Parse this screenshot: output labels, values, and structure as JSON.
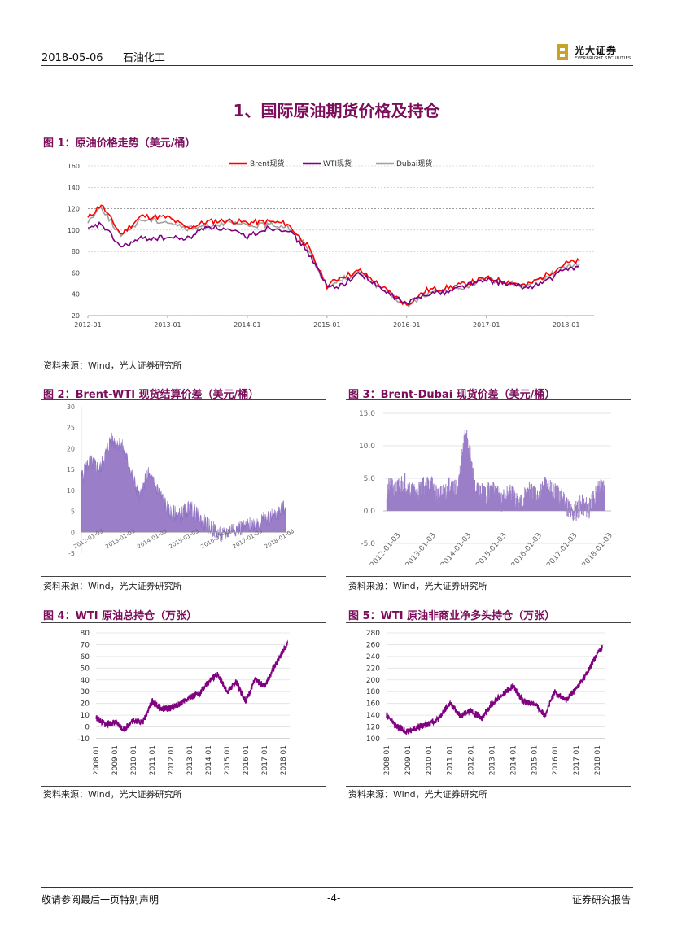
{
  "header": {
    "date": "2018-05-06",
    "sector": "石油化工",
    "logo_cn": "光大证券",
    "logo_en": "EVERBRIGHT SECURITIES"
  },
  "section_title": "1、国际原油期货价格及持仓",
  "source_text": "资料来源：Wind，光大证券研究所",
  "footer": {
    "left": "敬请参阅最后一页特别声明",
    "center": "-4-",
    "right": "证券研究报告"
  },
  "colors": {
    "brand": "#7b0d5a",
    "brent": "#ff0000",
    "wti": "#800080",
    "dubai": "#a0a0a0",
    "fill": "#9b7ec8"
  },
  "figures": [
    {
      "title": "图 1：原油价格走势（美元/桶）"
    },
    {
      "title": "图 2：Brent-WTI 现货结算价差（美元/桶）"
    },
    {
      "title": "图 3：Brent-Dubai 现货价差（美元/桶）"
    },
    {
      "title": "图 4：WTI 原油总持仓（万张）"
    },
    {
      "title": "图 5：WTI 原油非商业净多头持仓（万张）"
    }
  ],
  "chart_data": [
    {
      "type": "line",
      "ylim": [
        20,
        160
      ],
      "yticks": [
        "160",
        "140",
        "120",
        "100",
        "80",
        "60",
        "40",
        "20"
      ],
      "xticks": [
        "2012-01",
        "2013-01",
        "2014-01",
        "2015-01",
        "2016-01",
        "2017-01",
        "2018-01"
      ],
      "x": [
        "2012-01",
        "2012-03",
        "2012-06",
        "2012-09",
        "2013-01",
        "2013-04",
        "2013-07",
        "2013-10",
        "2014-01",
        "2014-04",
        "2014-07",
        "2014-10",
        "2015-01",
        "2015-03",
        "2015-06",
        "2015-09",
        "2016-01",
        "2016-04",
        "2016-07",
        "2016-10",
        "2017-01",
        "2017-04",
        "2017-07",
        "2017-10",
        "2018-01",
        "2018-03"
      ],
      "series": [
        {
          "name": "Brent现货",
          "values": [
            111,
            124,
            96,
            113,
            112,
            102,
            108,
            109,
            107,
            108,
            106,
            86,
            48,
            56,
            62,
            48,
            30,
            44,
            46,
            50,
            55,
            52,
            48,
            58,
            69,
            71
          ]
        },
        {
          "name": "WTI现货",
          "values": [
            100,
            106,
            84,
            92,
            93,
            92,
            104,
            100,
            94,
            102,
            101,
            81,
            47,
            48,
            60,
            45,
            31,
            41,
            42,
            49,
            53,
            50,
            46,
            52,
            64,
            66
          ]
        },
        {
          "name": "Dubai现货",
          "values": [
            108,
            122,
            94,
            110,
            108,
            101,
            104,
            107,
            104,
            105,
            104,
            85,
            46,
            54,
            60,
            46,
            29,
            40,
            43,
            47,
            54,
            51,
            47,
            56,
            66,
            68
          ]
        }
      ]
    },
    {
      "type": "area",
      "ylim": [
        -5,
        30
      ],
      "yticks": [
        "30",
        "25",
        "20",
        "15",
        "10",
        "5",
        "0",
        "-5"
      ],
      "xticks": [
        "2012-01-03",
        "2013-01-03",
        "2014-01-03",
        "2015-01-03",
        "2016-01-03",
        "2017-01-03",
        "2018-01-03"
      ],
      "x": [
        "2011-10",
        "2012-01",
        "2012-05",
        "2012-09",
        "2013-01",
        "2013-04",
        "2013-08",
        "2013-11",
        "2014-03",
        "2014-07",
        "2014-11",
        "2015-03",
        "2015-07",
        "2015-11",
        "2016-03",
        "2016-07",
        "2016-11",
        "2017-03",
        "2017-07",
        "2017-11",
        "2018-03"
      ],
      "values": [
        13,
        17,
        15,
        22,
        21,
        16,
        8,
        14,
        10,
        5,
        4,
        6,
        3,
        1,
        -1,
        1,
        1,
        2,
        3,
        4,
        6
      ]
    },
    {
      "type": "bar",
      "ylim": [
        -5,
        15
      ],
      "yticks": [
        "15.0",
        "10.0",
        "5.0",
        "0.0",
        "-5.0"
      ],
      "xticks": [
        "2012-01-03",
        "2013-01-03",
        "2014-01-03",
        "2015-01-03",
        "2016-01-03",
        "2017-01-03",
        "2018-01-03"
      ],
      "x": [
        "2012-01",
        "2012-04",
        "2012-07",
        "2012-10",
        "2013-01",
        "2013-04",
        "2013-07",
        "2013-10",
        "2014-01",
        "2014-04",
        "2014-07",
        "2014-10",
        "2015-01",
        "2015-04",
        "2015-07",
        "2015-10",
        "2016-01",
        "2016-04",
        "2016-07",
        "2016-10",
        "2017-01",
        "2017-04",
        "2017-07",
        "2017-10",
        "2018-01",
        "2018-03"
      ],
      "values": [
        3.5,
        3.0,
        4.5,
        2.5,
        3.5,
        4.0,
        2.0,
        3.5,
        3.0,
        12.5,
        3.0,
        2.5,
        3.0,
        1.5,
        2.5,
        1.0,
        3.0,
        2.0,
        4.0,
        2.5,
        2.0,
        -0.5,
        1.0,
        0.5,
        3.5,
        4.0
      ]
    },
    {
      "type": "line",
      "ylim": [
        -10,
        80
      ],
      "yticks": [
        "80",
        "70",
        "60",
        "50",
        "40",
        "30",
        "20",
        "10",
        "0",
        "-10"
      ],
      "xticks": [
        "2008-01",
        "2009-01",
        "2010-01",
        "2011-01",
        "2012-01",
        "2013-01",
        "2014-01",
        "2015-01",
        "2016-01",
        "2017-01",
        "2018-01"
      ],
      "x": [
        "2008-01",
        "2008-07",
        "2009-01",
        "2009-07",
        "2010-01",
        "2010-07",
        "2011-01",
        "2011-07",
        "2012-01",
        "2012-07",
        "2013-01",
        "2013-07",
        "2014-01",
        "2014-07",
        "2015-01",
        "2015-07",
        "2016-01",
        "2016-07",
        "2017-01",
        "2017-07",
        "2018-01",
        "2018-04"
      ],
      "values": [
        8,
        2,
        4,
        -2,
        6,
        4,
        22,
        15,
        16,
        20,
        25,
        28,
        38,
        45,
        30,
        38,
        22,
        40,
        35,
        50,
        65,
        72
      ]
    },
    {
      "type": "line",
      "ylim": [
        100,
        280
      ],
      "yticks": [
        "280",
        "260",
        "240",
        "220",
        "200",
        "180",
        "160",
        "140",
        "120",
        "100"
      ],
      "xticks": [
        "2008-01",
        "2009-01",
        "2010-01",
        "2011-01",
        "2012-01",
        "2013-01",
        "2014-01",
        "2015-01",
        "2016-01",
        "2017-01",
        "2018-01"
      ],
      "x": [
        "2008-01",
        "2008-07",
        "2009-01",
        "2009-07",
        "2010-01",
        "2010-07",
        "2011-01",
        "2011-07",
        "2012-01",
        "2012-07",
        "2013-01",
        "2013-07",
        "2014-01",
        "2014-07",
        "2015-01",
        "2015-07",
        "2016-01",
        "2016-07",
        "2017-01",
        "2017-07",
        "2018-01",
        "2018-04"
      ],
      "values": [
        140,
        120,
        112,
        120,
        125,
        135,
        160,
        140,
        148,
        135,
        160,
        175,
        190,
        162,
        160,
        140,
        180,
        165,
        185,
        210,
        245,
        255
      ]
    }
  ]
}
